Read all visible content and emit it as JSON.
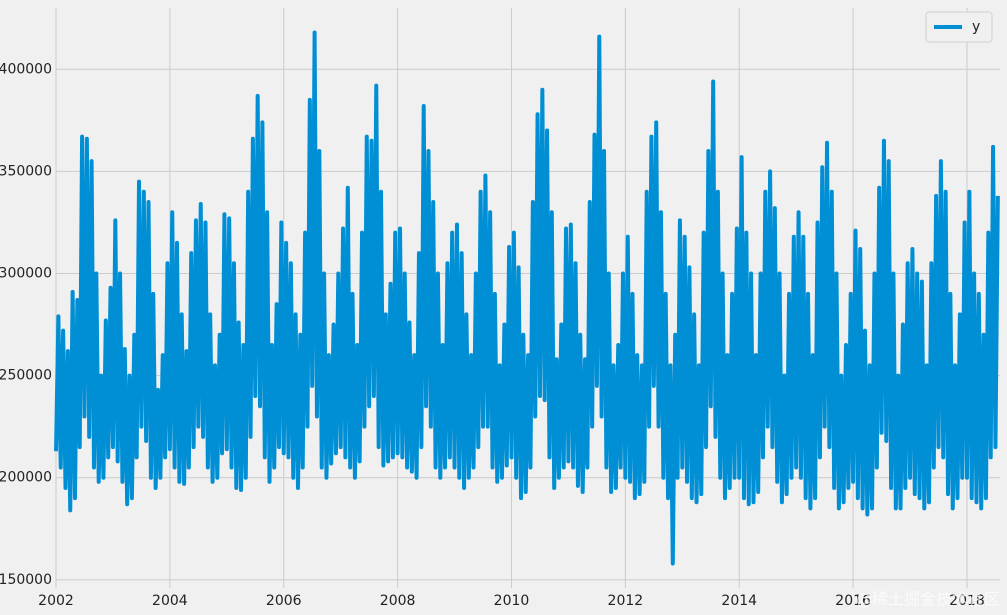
{
  "chart_data": {
    "type": "line",
    "series": [
      {
        "name": "y",
        "color": "#008fd5",
        "x": [
          2002,
          2002.042,
          2002.083,
          2002.125,
          2002.167,
          2002.208,
          2002.25,
          2002.292,
          2002.333,
          2002.375,
          2002.417,
          2002.458,
          2002.5,
          2002.542,
          2002.583,
          2002.625,
          2002.667,
          2002.708,
          2002.75,
          2002.792,
          2002.833,
          2002.875,
          2002.917,
          2002.958,
          2003,
          2003.042,
          2003.083,
          2003.125,
          2003.167,
          2003.208,
          2003.25,
          2003.292,
          2003.333,
          2003.375,
          2003.417,
          2003.458,
          2003.5,
          2003.542,
          2003.583,
          2003.625,
          2003.667,
          2003.708,
          2003.75,
          2003.792,
          2003.833,
          2003.875,
          2003.917,
          2003.958,
          2004,
          2004.042,
          2004.083,
          2004.125,
          2004.167,
          2004.208,
          2004.25,
          2004.292,
          2004.333,
          2004.375,
          2004.417,
          2004.458,
          2004.5,
          2004.542,
          2004.583,
          2004.625,
          2004.667,
          2004.708,
          2004.75,
          2004.792,
          2004.833,
          2004.875,
          2004.917,
          2004.958,
          2005,
          2005.042,
          2005.083,
          2005.125,
          2005.167,
          2005.208,
          2005.25,
          2005.292,
          2005.333,
          2005.375,
          2005.417,
          2005.458,
          2005.5,
          2005.542,
          2005.583,
          2005.625,
          2005.667,
          2005.708,
          2005.75,
          2005.792,
          2005.833,
          2005.875,
          2005.917,
          2005.958,
          2006,
          2006.042,
          2006.083,
          2006.125,
          2006.167,
          2006.208,
          2006.25,
          2006.292,
          2006.333,
          2006.375,
          2006.417,
          2006.458,
          2006.5,
          2006.542,
          2006.583,
          2006.625,
          2006.667,
          2006.708,
          2006.75,
          2006.792,
          2006.833,
          2006.875,
          2006.917,
          2006.958,
          2007,
          2007.042,
          2007.083,
          2007.125,
          2007.167,
          2007.208,
          2007.25,
          2007.292,
          2007.333,
          2007.375,
          2007.417,
          2007.458,
          2007.5,
          2007.542,
          2007.583,
          2007.625,
          2007.667,
          2007.708,
          2007.75,
          2007.792,
          2007.833,
          2007.875,
          2007.917,
          2007.958,
          2008,
          2008.042,
          2008.083,
          2008.125,
          2008.167,
          2008.208,
          2008.25,
          2008.292,
          2008.333,
          2008.375,
          2008.417,
          2008.458,
          2008.5,
          2008.542,
          2008.583,
          2008.625,
          2008.667,
          2008.708,
          2008.75,
          2008.792,
          2008.833,
          2008.875,
          2008.917,
          2008.958,
          2009,
          2009.042,
          2009.083,
          2009.125,
          2009.167,
          2009.208,
          2009.25,
          2009.292,
          2009.333,
          2009.375,
          2009.417,
          2009.458,
          2009.5,
          2009.542,
          2009.583,
          2009.625,
          2009.667,
          2009.708,
          2009.75,
          2009.792,
          2009.833,
          2009.875,
          2009.917,
          2009.958,
          2010,
          2010.042,
          2010.083,
          2010.125,
          2010.167,
          2010.208,
          2010.25,
          2010.292,
          2010.333,
          2010.375,
          2010.417,
          2010.458,
          2010.5,
          2010.542,
          2010.583,
          2010.625,
          2010.667,
          2010.708,
          2010.75,
          2010.792,
          2010.833,
          2010.875,
          2010.917,
          2010.958,
          2011,
          2011.042,
          2011.083,
          2011.125,
          2011.167,
          2011.208,
          2011.25,
          2011.292,
          2011.333,
          2011.375,
          2011.417,
          2011.458,
          2011.5,
          2011.542,
          2011.583,
          2011.625,
          2011.667,
          2011.708,
          2011.75,
          2011.792,
          2011.833,
          2011.875,
          2011.917,
          2011.958,
          2012,
          2012.042,
          2012.083,
          2012.125,
          2012.167,
          2012.208,
          2012.25,
          2012.292,
          2012.333,
          2012.375,
          2012.417,
          2012.458,
          2012.5,
          2012.542,
          2012.583,
          2012.625,
          2012.667,
          2012.708,
          2012.75,
          2012.792,
          2012.833,
          2012.875,
          2012.917,
          2012.958,
          2013,
          2013.042,
          2013.083,
          2013.125,
          2013.167,
          2013.208,
          2013.25,
          2013.292,
          2013.333,
          2013.375,
          2013.417,
          2013.458,
          2013.5,
          2013.542,
          2013.583,
          2013.625,
          2013.667,
          2013.708,
          2013.75,
          2013.792,
          2013.833,
          2013.875,
          2013.917,
          2013.958,
          2014,
          2014.042,
          2014.083,
          2014.125,
          2014.167,
          2014.208,
          2014.25,
          2014.292,
          2014.333,
          2014.375,
          2014.417,
          2014.458,
          2014.5,
          2014.542,
          2014.583,
          2014.625,
          2014.667,
          2014.708,
          2014.75,
          2014.792,
          2014.833,
          2014.875,
          2014.917,
          2014.958,
          2015,
          2015.042,
          2015.083,
          2015.125,
          2015.167,
          2015.208,
          2015.25,
          2015.292,
          2015.333,
          2015.375,
          2015.417,
          2015.458,
          2015.5,
          2015.542,
          2015.583,
          2015.625,
          2015.667,
          2015.708,
          2015.75,
          2015.792,
          2015.833,
          2015.875,
          2015.917,
          2015.958,
          2016,
          2016.042,
          2016.083,
          2016.125,
          2016.167,
          2016.208,
          2016.25,
          2016.292,
          2016.333,
          2016.375,
          2016.417,
          2016.458,
          2016.5,
          2016.542,
          2016.583,
          2016.625,
          2016.667,
          2016.708,
          2016.75,
          2016.792,
          2016.833,
          2016.875,
          2016.917,
          2016.958,
          2017,
          2017.042,
          2017.083,
          2017.125,
          2017.167,
          2017.208,
          2017.25,
          2017.292,
          2017.333,
          2017.375,
          2017.417,
          2017.458,
          2017.5,
          2017.542,
          2017.583,
          2017.625,
          2017.667,
          2017.708,
          2017.75,
          2017.792,
          2017.833,
          2017.875,
          2017.917,
          2017.958,
          2018,
          2018.042,
          2018.083,
          2018.125,
          2018.167,
          2018.208,
          2018.25,
          2018.292,
          2018.333,
          2018.375,
          2018.417,
          2018.458,
          2018.5,
          2018.542
        ],
        "values": [
          213000,
          279000,
          205000,
          272000,
          195000,
          262000,
          184000,
          291000,
          190000,
          287000,
          215000,
          367000,
          230000,
          366000,
          220000,
          355000,
          205000,
          300000,
          198000,
          250000,
          200000,
          277000,
          210000,
          293000,
          215000,
          326000,
          208000,
          300000,
          198000,
          263000,
          187000,
          250000,
          190000,
          270000,
          210000,
          345000,
          225000,
          340000,
          218000,
          335000,
          200000,
          290000,
          195000,
          243000,
          200000,
          260000,
          210000,
          305000,
          214000,
          330000,
          205000,
          315000,
          198000,
          280000,
          197000,
          262000,
          205000,
          310000,
          215000,
          326000,
          225000,
          334000,
          220000,
          325000,
          205000,
          280000,
          198000,
          255000,
          200000,
          270000,
          212000,
          329000,
          214000,
          327000,
          205000,
          305000,
          195000,
          276000,
          194000,
          265000,
          200000,
          340000,
          220000,
          366000,
          240000,
          387000,
          235000,
          374000,
          210000,
          330000,
          198000,
          265000,
          205000,
          285000,
          215000,
          325000,
          212000,
          315000,
          210000,
          305000,
          200000,
          280000,
          195000,
          270000,
          205000,
          320000,
          225000,
          385000,
          245000,
          418000,
          230000,
          360000,
          205000,
          300000,
          200000,
          260000,
          207000,
          275000,
          212000,
          300000,
          215000,
          322000,
          210000,
          342000,
          205000,
          290000,
          200000,
          265000,
          208000,
          320000,
          225000,
          367000,
          235000,
          365000,
          240000,
          392000,
          215000,
          340000,
          206000,
          280000,
          208000,
          295000,
          210000,
          320000,
          212000,
          322000,
          210000,
          300000,
          205000,
          276000,
          203000,
          260000,
          200000,
          310000,
          215000,
          382000,
          235000,
          360000,
          225000,
          335000,
          205000,
          300000,
          200000,
          265000,
          205000,
          305000,
          210000,
          320000,
          205000,
          324000,
          200000,
          310000,
          195000,
          280000,
          200000,
          260000,
          205000,
          300000,
          215000,
          340000,
          225000,
          348000,
          225000,
          330000,
          205000,
          290000,
          198000,
          255000,
          200000,
          275000,
          206000,
          313000,
          210000,
          320000,
          200000,
          303000,
          190000,
          270000,
          193000,
          260000,
          205000,
          335000,
          230000,
          378000,
          240000,
          390000,
          238000,
          370000,
          210000,
          330000,
          195000,
          258000,
          200000,
          275000,
          205000,
          322000,
          208000,
          324000,
          205000,
          305000,
          196000,
          270000,
          193000,
          258000,
          205000,
          335000,
          225000,
          368000,
          245000,
          416000,
          230000,
          360000,
          205000,
          300000,
          193000,
          255000,
          195000,
          265000,
          205000,
          300000,
          200000,
          318000,
          198000,
          290000,
          190000,
          260000,
          192000,
          255000,
          198000,
          340000,
          225000,
          367000,
          245000,
          374000,
          225000,
          330000,
          200000,
          290000,
          190000,
          255000,
          158000,
          270000,
          200000,
          326000,
          205000,
          318000,
          198000,
          303000,
          190000,
          280000,
          188000,
          255000,
          192000,
          320000,
          215000,
          360000,
          235000,
          394000,
          220000,
          340000,
          200000,
          300000,
          190000,
          260000,
          195000,
          290000,
          200000,
          322000,
          200000,
          357000,
          190000,
          320000,
          187000,
          300000,
          188000,
          260000,
          193000,
          300000,
          210000,
          340000,
          225000,
          350000,
          215000,
          332000,
          198000,
          300000,
          188000,
          250000,
          192000,
          290000,
          200000,
          318000,
          205000,
          330000,
          200000,
          318000,
          190000,
          290000,
          185000,
          260000,
          190000,
          325000,
          210000,
          352000,
          225000,
          364000,
          215000,
          340000,
          195000,
          300000,
          185000,
          250000,
          188000,
          265000,
          195000,
          290000,
          198000,
          321000,
          190000,
          312000,
          185000,
          272000,
          182000,
          255000,
          185000,
          300000,
          205000,
          342000,
          222000,
          365000,
          218000,
          355000,
          195000,
          300000,
          185000,
          250000,
          185000,
          275000,
          195000,
          305000,
          200000,
          312000,
          192000,
          300000,
          190000,
          296000,
          185000,
          255000,
          188000,
          305000,
          205000,
          338000,
          215000,
          355000,
          210000,
          340000,
          192000,
          290000,
          185000,
          255000,
          190000,
          280000,
          200000,
          325000,
          200000,
          340000,
          190000,
          300000,
          188000,
          290000,
          185000,
          270000,
          190000,
          320000,
          210000,
          362000,
          215000,
          338000
        ]
      }
    ],
    "xlim": [
      2002,
      2018.58
    ],
    "xticks": [
      2002,
      2004,
      2006,
      2008,
      2010,
      2012,
      2014,
      2016,
      2018
    ],
    "ylim": [
      146000,
      430000
    ],
    "yticks": [
      150000,
      200000,
      250000,
      300000,
      350000,
      400000
    ],
    "grid": true,
    "legend": "upper right",
    "watermark": "@稀土掘金技术社区"
  }
}
